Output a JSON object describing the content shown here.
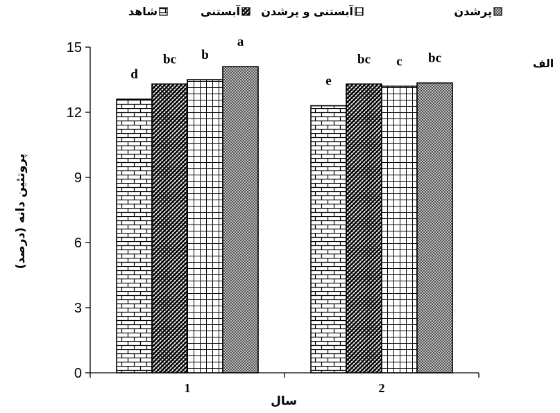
{
  "chart_data": {
    "type": "bar",
    "categories": [
      "1",
      "2"
    ],
    "series": [
      {
        "name": "شاهد",
        "values": [
          12.6,
          12.3
        ],
        "labels": [
          "d",
          "e"
        ],
        "pattern": "brick"
      },
      {
        "name": "آبستنی",
        "values": [
          13.3,
          13.3
        ],
        "labels": [
          "bc",
          "bc"
        ],
        "pattern": "diag"
      },
      {
        "name": "آبستنی و پرشدن",
        "values": [
          13.5,
          13.2
        ],
        "labels": [
          "b",
          "c"
        ],
        "pattern": "grid"
      },
      {
        "name": "پرشدن",
        "values": [
          14.1,
          13.35
        ],
        "labels": [
          "a",
          "bc"
        ],
        "pattern": "dots"
      }
    ],
    "xlabel": "سال",
    "ylabel": "پروتئین دانه (درصد)",
    "ylim": [
      0,
      15
    ],
    "yticks": [
      "0",
      "3",
      "6",
      "9",
      "12",
      "15"
    ],
    "panel_label": "الف",
    "legend_position": "top",
    "grid": false
  }
}
